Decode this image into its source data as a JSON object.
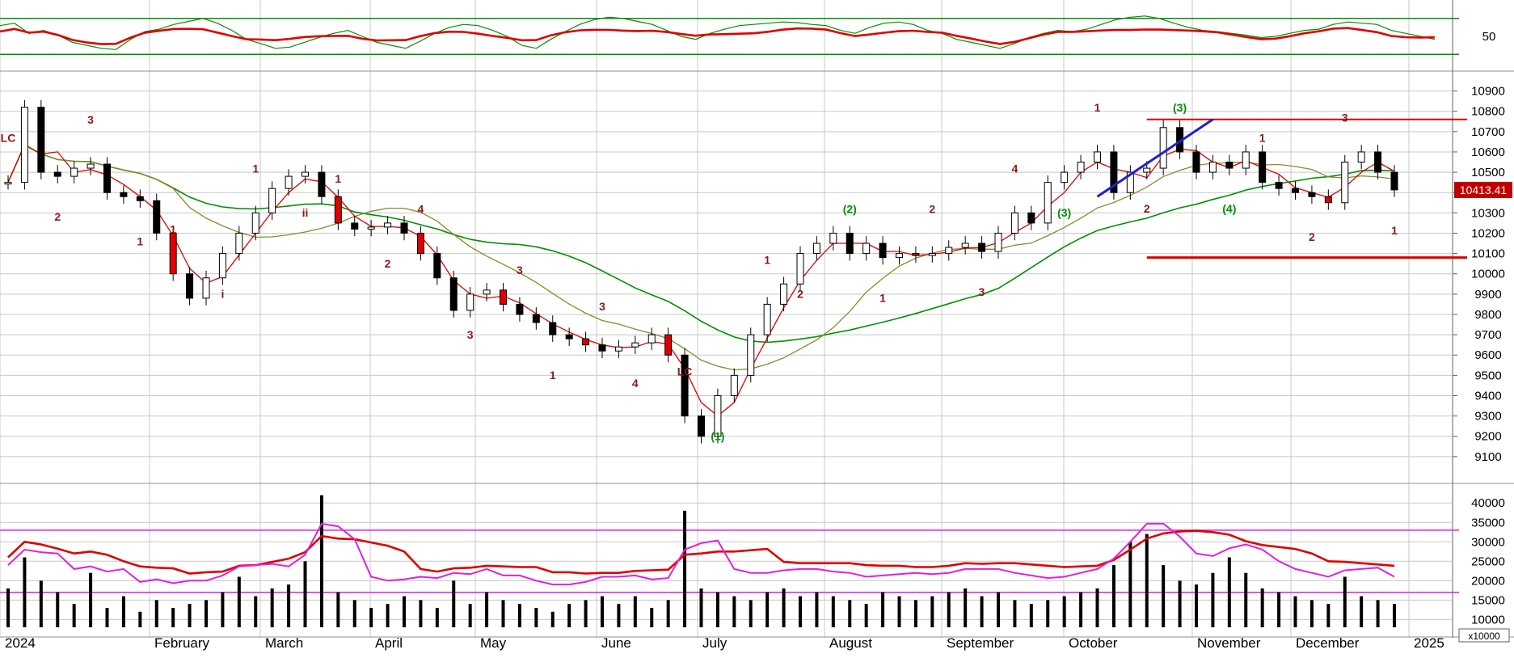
{
  "colors": {
    "up_candle": "#ffffff",
    "down_candle": "#000000",
    "red": "#e00000",
    "green": "#009000",
    "olive": "#8a8a2e",
    "blue": "#2020d0",
    "magenta": "#e020e0",
    "grid": "#c8c8c8",
    "yellow": "#f0c020"
  },
  "chart_data": [
    {
      "type": "line",
      "name": "oscillator_panel",
      "y_ticks": [
        50
      ],
      "upper_level": 80,
      "lower_level": 20,
      "series": [
        {
          "values": [
            68,
            72,
            55,
            60,
            52,
            40,
            35,
            30,
            28,
            45,
            58,
            62,
            70,
            75,
            80,
            72,
            60,
            45,
            38,
            30,
            32,
            40,
            48,
            55,
            60,
            50,
            40,
            35,
            30,
            42,
            55,
            65,
            70,
            68,
            60,
            50,
            35,
            30,
            45,
            58,
            70,
            78,
            82,
            80,
            75,
            70,
            60,
            50,
            45,
            55,
            62,
            68,
            70,
            72,
            74,
            73,
            70,
            68,
            60,
            55,
            65,
            72,
            74,
            70,
            60,
            55,
            45,
            40,
            35,
            30,
            38,
            48,
            55,
            60,
            58,
            62,
            70,
            78,
            82,
            84,
            80,
            72,
            65,
            60,
            58,
            55,
            52,
            48,
            50,
            55,
            60,
            62,
            70,
            74,
            72,
            70,
            60,
            55,
            50,
            45
          ]
        }
      ]
    },
    {
      "type": "line",
      "name": "price_panel",
      "y_ticks": [
        9100,
        9200,
        9300,
        9400,
        9500,
        9600,
        9700,
        9800,
        9900,
        10000,
        10100,
        10200,
        10300,
        10400,
        10500,
        10600,
        10700,
        10800,
        10900
      ],
      "ylim": [
        9000,
        10950
      ],
      "last_price_label": "10413.41",
      "x_ticks": [
        "2024",
        "February",
        "March",
        "April",
        "May",
        "June",
        "July",
        "August",
        "September",
        "October",
        "November",
        "December",
        "2025"
      ],
      "close": [
        10450,
        10820,
        10500,
        10480,
        10520,
        10540,
        10400,
        10380,
        10360,
        10200,
        10000,
        9880,
        9980,
        10100,
        10200,
        10300,
        10420,
        10480,
        10500,
        10380,
        10250,
        10220,
        10230,
        10250,
        10200,
        10100,
        9980,
        9820,
        9900,
        9920,
        9850,
        9800,
        9760,
        9700,
        9680,
        9650,
        9620,
        9640,
        9660,
        9700,
        9600,
        9300,
        9200,
        9400,
        9500,
        9700,
        9850,
        9950,
        10100,
        10150,
        10200,
        10100,
        10150,
        10080,
        10100,
        10090,
        10100,
        10130,
        10150,
        10110,
        10200,
        10300,
        10250,
        10450,
        10500,
        10550,
        10600,
        10400,
        10500,
        10520,
        10720,
        10600,
        10500,
        10550,
        10520,
        10600,
        10450,
        10420,
        10400,
        10380,
        10350,
        10550,
        10600,
        10500,
        10413
      ],
      "annotations": [
        "LC",
        "2",
        "3",
        "1",
        "1",
        "i",
        "1",
        "ii",
        "1",
        "2",
        "4",
        "3",
        "3",
        "1",
        "3",
        "4",
        "LC",
        "(1)",
        "1",
        "2",
        "(2)",
        "1",
        "2",
        "3",
        "4",
        "(3)",
        "1",
        "2",
        "(3)",
        "(4)",
        "1",
        "2",
        "3",
        "1"
      ]
    },
    {
      "type": "bar",
      "name": "volume_panel",
      "y_ticks": [
        10000,
        15000,
        20000,
        25000,
        30000,
        35000,
        40000
      ],
      "multiplier_label": "x10000",
      "volume": [
        18000,
        26000,
        20000,
        17000,
        14000,
        22000,
        13000,
        16000,
        12000,
        15000,
        13000,
        14000,
        15000,
        17000,
        21000,
        16000,
        18000,
        19000,
        25000,
        42000,
        17000,
        15000,
        13000,
        14000,
        16000,
        15000,
        13000,
        20000,
        14000,
        17000,
        15000,
        14000,
        13000,
        12000,
        14000,
        15000,
        16000,
        14000,
        16000,
        13000,
        15000,
        38000,
        18000,
        17000,
        16000,
        15000,
        17000,
        18000,
        16000,
        17000,
        16000,
        15000,
        14000,
        17000,
        16000,
        15000,
        16000,
        17000,
        18000,
        16000,
        17000,
        15000,
        14000,
        15000,
        16000,
        17000,
        18000,
        24000,
        30000,
        32000,
        24000,
        20000,
        19000,
        22000,
        26000,
        22000,
        18000,
        17000,
        16000,
        15000,
        14000,
        21000,
        16000,
        15000,
        14000
      ]
    }
  ]
}
